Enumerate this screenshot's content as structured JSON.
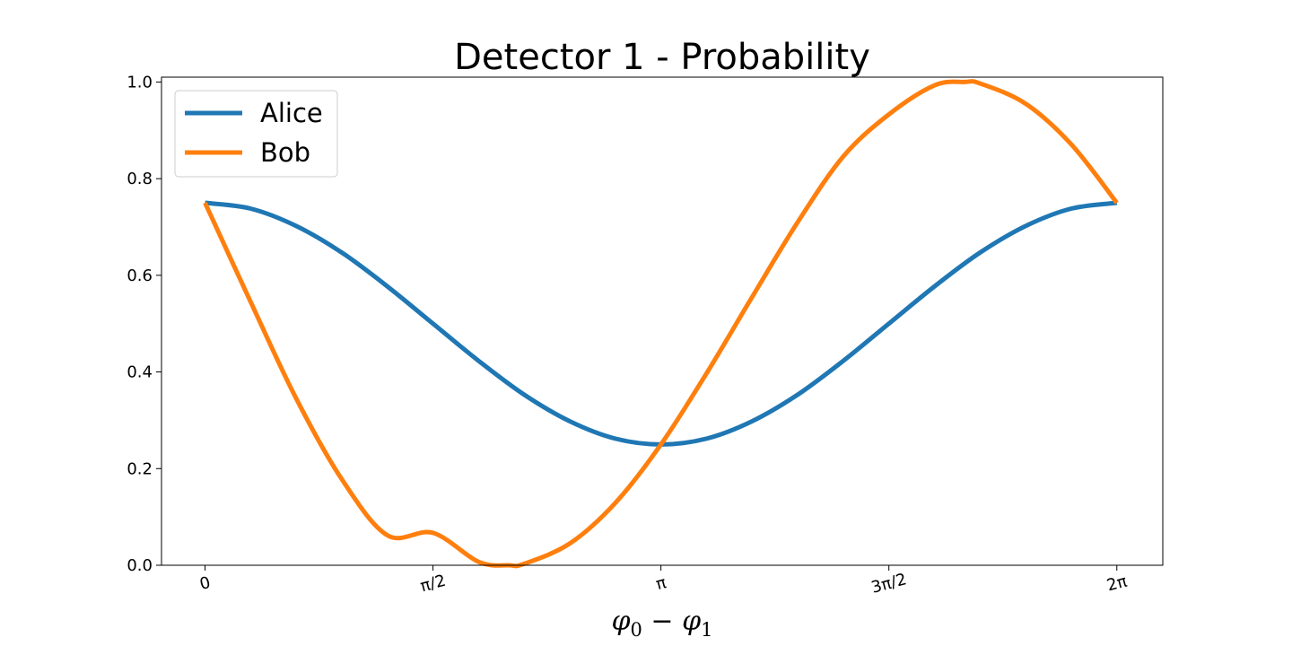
{
  "chart_data": {
    "type": "line",
    "title": "Detector 1 - Probability",
    "xlabel": "φ0 − φ1",
    "ylabel": "",
    "xlim": [
      -0.3,
      6.6
    ],
    "ylim": [
      0.0,
      1.01
    ],
    "x_ticks": [
      0,
      1.5708,
      3.1416,
      4.7124,
      6.2832
    ],
    "x_tick_labels": [
      "0",
      "π/2",
      "π",
      "3π/2",
      "2π"
    ],
    "x_tick_rotation_deg": -15,
    "y_ticks": [
      0.0,
      0.2,
      0.4,
      0.6,
      0.8,
      1.0
    ],
    "y_tick_labels": [
      "0.0",
      "0.2",
      "0.4",
      "0.6",
      "0.8",
      "1.0"
    ],
    "grid": false,
    "legend_placement": "top-left",
    "series": [
      {
        "name": "Alice",
        "color": "#1f77b4",
        "x": [
          0,
          0.3142,
          0.6283,
          0.9425,
          1.2566,
          1.5708,
          1.885,
          2.1991,
          2.5133,
          2.8274,
          3.1416,
          3.4558,
          3.7699,
          4.0841,
          4.3982,
          4.7124,
          5.0265,
          5.3407,
          5.6549,
          5.969,
          6.2832
        ],
        "values": [
          0.75,
          0.738,
          0.702,
          0.647,
          0.577,
          0.5,
          0.423,
          0.353,
          0.298,
          0.262,
          0.25,
          0.262,
          0.298,
          0.353,
          0.423,
          0.5,
          0.577,
          0.647,
          0.702,
          0.738,
          0.75
        ]
      },
      {
        "name": "Bob",
        "color": "#ff7f0e",
        "x": [
          0,
          0.3142,
          0.6283,
          0.9425,
          1.2566,
          1.5708,
          1.885,
          2.0944,
          2.1991,
          2.5133,
          2.8274,
          3.1416,
          3.4558,
          3.7699,
          4.0841,
          4.3982,
          4.7124,
          5.0265,
          5.236,
          5.3407,
          5.6549,
          5.969,
          6.2832
        ],
        "values": [
          0.75,
          0.545,
          0.345,
          0.178,
          0.062,
          0.067,
          0.007,
          0.0,
          0.003,
          0.045,
          0.129,
          0.25,
          0.397,
          0.555,
          0.71,
          0.846,
          0.933,
          0.993,
          1.0,
          0.997,
          0.955,
          0.871,
          0.75
        ]
      }
    ]
  }
}
